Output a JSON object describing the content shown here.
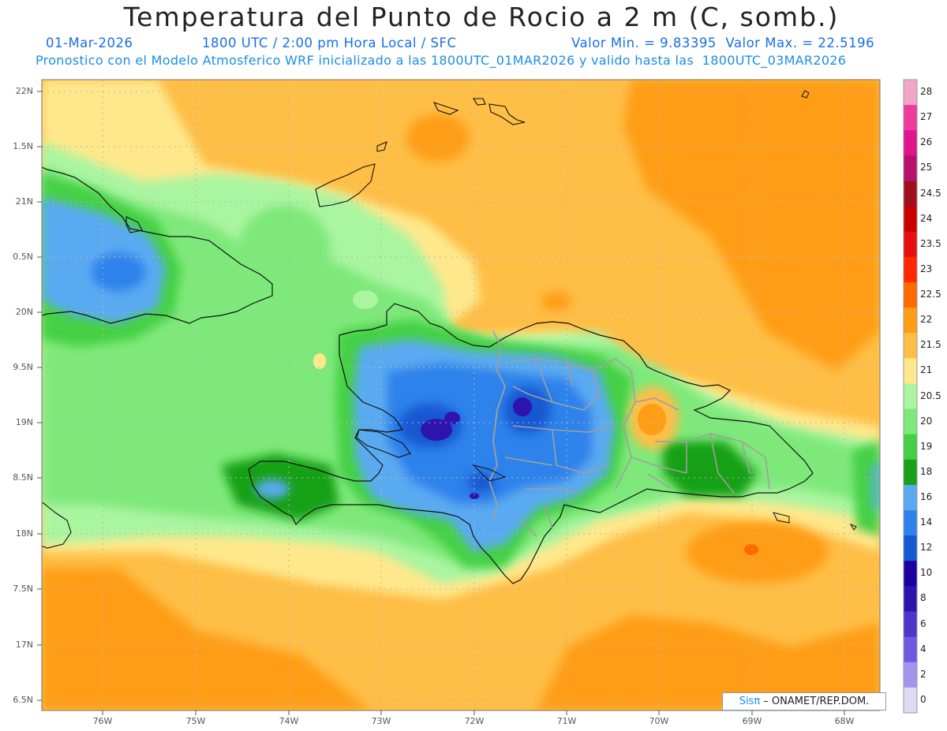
{
  "header": {
    "title": "Temperatura del Punto de Rocio a 2 m (C, somb.)",
    "date": "01-Mar-2026",
    "time": "1800 UTC / 2:00 pm Hora Local / SFC",
    "minmax": "Valor Min. = 9.83395  Valor Max. = 22.5196",
    "model_line": "Pronostico con el Modelo Atmosferico WRF inicializado a las 1800UTC_01MAR2026 y valido hasta las  1800UTC_03MAR2026"
  },
  "axes": {
    "lat_labels": [
      "22N",
      "1.5N",
      "21N",
      "0.5N",
      "20N",
      "9.5N",
      "19N",
      "8.5N",
      "18N",
      "7.5N",
      "17N",
      "6.5N"
    ],
    "lon_labels": [
      "76W",
      "75W",
      "74W",
      "73W",
      "72W",
      "71W",
      "70W",
      "69W",
      "68W"
    ]
  },
  "colorbar": {
    "labels": [
      "28",
      "27",
      "26",
      "25",
      "24.5",
      "24",
      "23.5",
      "23",
      "22.5",
      "22",
      "21.5",
      "21",
      "20.5",
      "20",
      "19",
      "18",
      "16",
      "14",
      "12",
      "10",
      "8",
      "6",
      "4",
      "2",
      "0"
    ],
    "colors": [
      "#f4a6c8",
      "#ec3c9c",
      "#e0148c",
      "#b8106c",
      "#a0101c",
      "#c80000",
      "#e61010",
      "#ff2800",
      "#ff6a00",
      "#ff9e14",
      "#ffbe46",
      "#ffe88c",
      "#aaf5a0",
      "#7ee97a",
      "#44d044",
      "#19a019",
      "#5aaaf2",
      "#2d82eb",
      "#1459d2",
      "#1e00a0",
      "#2d14af",
      "#4b37c8",
      "#6e5ae1",
      "#a096f0",
      "#dcdcf4"
    ]
  },
  "credit": {
    "brand": "Sisπ",
    "text": " – ONAMET/REP.DOM."
  }
}
